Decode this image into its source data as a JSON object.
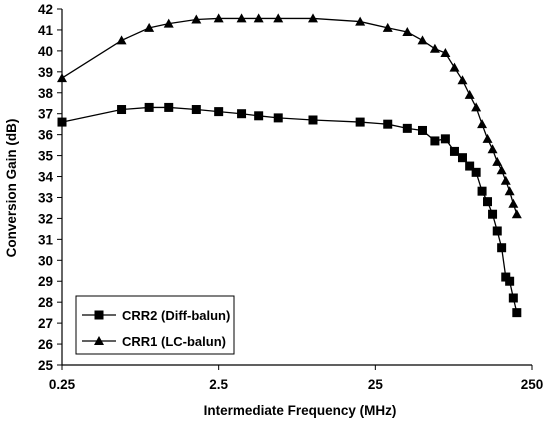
{
  "chart_data": {
    "type": "line",
    "xlabel": "Intermediate Frequency (MHz)",
    "ylabel": "Conversion Gain (dB)",
    "x_scale": "log",
    "xlim": [
      0.25,
      250
    ],
    "ylim": [
      25,
      42
    ],
    "x_tick_labels": [
      "0.25",
      "2.5",
      "25",
      "250"
    ],
    "x_tick_values": [
      0.25,
      2.5,
      25,
      250
    ],
    "y_tick_values": [
      25,
      26,
      27,
      28,
      29,
      30,
      31,
      32,
      33,
      34,
      35,
      36,
      37,
      38,
      39,
      40,
      41,
      42
    ],
    "grid": false,
    "legend_position": "bottom-left",
    "series": [
      {
        "name": "CRR2 (Diff-balun)",
        "marker": "square",
        "color": "#000000",
        "x": [
          0.25,
          0.6,
          0.9,
          1.2,
          1.8,
          2.5,
          3.5,
          4.5,
          6.0,
          10.0,
          20.0,
          30.0,
          40.0,
          50.0,
          60.0,
          70.0,
          80.0,
          90.0,
          100.0,
          110.0,
          120.0,
          130.0,
          140.0,
          150.0,
          160.0,
          170.0,
          180.0,
          190.0,
          200.0
        ],
        "y": [
          36.6,
          37.2,
          37.3,
          37.3,
          37.2,
          37.1,
          37.0,
          36.9,
          36.8,
          36.7,
          36.6,
          36.5,
          36.3,
          36.2,
          35.7,
          35.8,
          35.2,
          34.9,
          34.5,
          34.2,
          33.3,
          32.8,
          32.2,
          31.4,
          30.6,
          29.2,
          29.0,
          28.2,
          27.5
        ]
      },
      {
        "name": "CRR1 (LC-balun)",
        "marker": "triangle",
        "color": "#000000",
        "x": [
          0.25,
          0.6,
          0.9,
          1.2,
          1.8,
          2.5,
          3.5,
          4.5,
          6.0,
          10.0,
          20.0,
          30.0,
          40.0,
          50.0,
          60.0,
          70.0,
          80.0,
          90.0,
          100.0,
          110.0,
          120.0,
          130.0,
          140.0,
          150.0,
          160.0,
          170.0,
          180.0,
          190.0,
          200.0
        ],
        "y": [
          38.7,
          40.5,
          41.1,
          41.3,
          41.5,
          41.55,
          41.55,
          41.55,
          41.55,
          41.55,
          41.4,
          41.1,
          40.9,
          40.5,
          40.1,
          39.9,
          39.2,
          38.6,
          37.9,
          37.3,
          36.5,
          35.8,
          35.3,
          34.7,
          34.3,
          33.8,
          33.3,
          32.7,
          32.2
        ]
      }
    ]
  }
}
